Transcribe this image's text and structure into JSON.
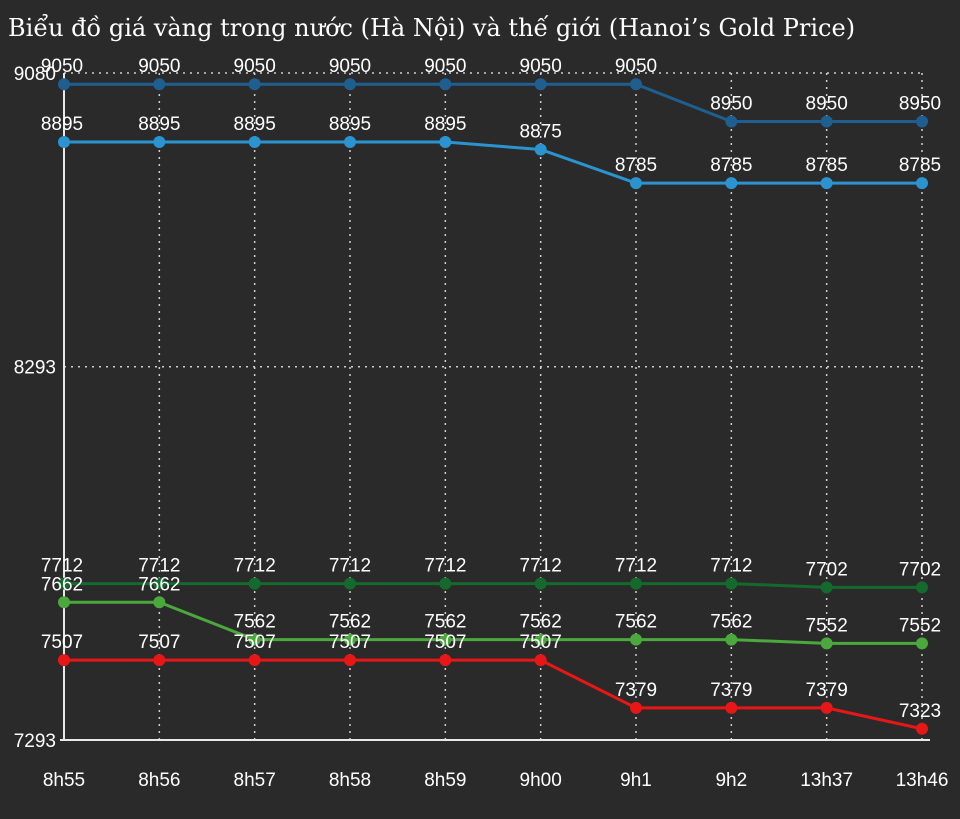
{
  "chart_data": {
    "type": "line",
    "title": "Biểu đồ giá vàng trong nước (Hà Nội) và thế giới (Hanoi’s Gold Price)",
    "categories": [
      "8h55",
      "8h56",
      "8h57",
      "8h58",
      "8h59",
      "9h00",
      "9h1",
      "9h2",
      "13h37",
      "13h46"
    ],
    "y_ticks": [
      "9080",
      "8293",
      "7293"
    ],
    "ylim": [
      7293,
      9080
    ],
    "grid": true,
    "series": [
      {
        "color": "#1f5f8f",
        "values": [
          9050,
          9050,
          9050,
          9050,
          9050,
          9050,
          9050,
          8950,
          8950,
          8950
        ]
      },
      {
        "color": "#2b94d0",
        "values": [
          8895,
          8895,
          8895,
          8895,
          8895,
          8875,
          8785,
          8785,
          8785,
          8785
        ]
      },
      {
        "color": "#146a2c",
        "values": [
          7712,
          7712,
          7712,
          7712,
          7712,
          7712,
          7712,
          7712,
          7702,
          7702
        ]
      },
      {
        "color": "#4aa83c",
        "values": [
          7662,
          7662,
          7562,
          7562,
          7562,
          7562,
          7562,
          7562,
          7552,
          7552
        ]
      },
      {
        "color": "#e81717",
        "values": [
          7507,
          7507,
          7507,
          7507,
          7507,
          7507,
          7379,
          7379,
          7379,
          7323
        ]
      }
    ]
  }
}
